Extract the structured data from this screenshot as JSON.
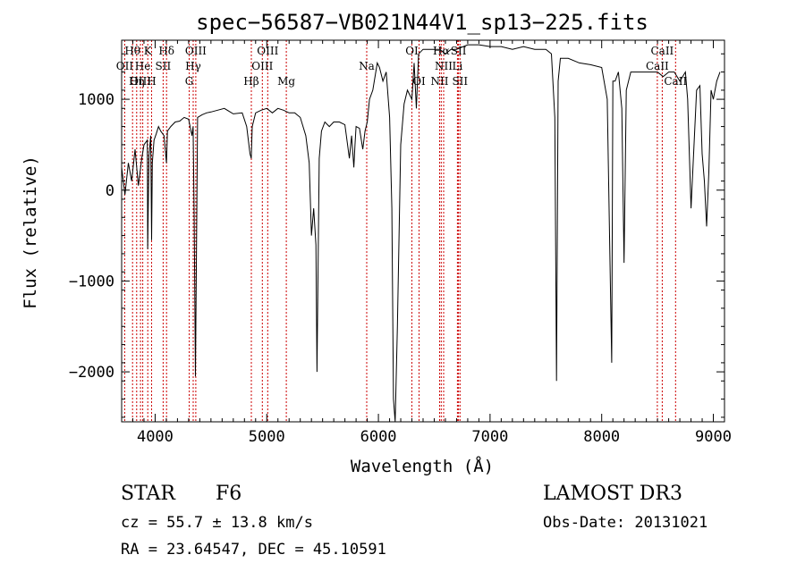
{
  "chart_data": {
    "type": "line",
    "title": "spec−56587−VB021N44V1_sp13−225.fits",
    "xlabel": "Wavelength (Å)",
    "ylabel": "Flux (relative)",
    "xlim": [
      3700,
      9100
    ],
    "ylim": [
      -2550,
      1650
    ],
    "x_ticks": [
      4000,
      5000,
      6000,
      7000,
      8000,
      9000
    ],
    "x_tick_labels": [
      "4000",
      "5000",
      "6000",
      "7000",
      "8000",
      "9000"
    ],
    "y_ticks": [
      1000,
      0,
      -1000,
      -2000
    ],
    "y_tick_labels": [
      "1000",
      "0",
      "−1000",
      "−2000"
    ],
    "series": [
      {
        "name": "flux",
        "x": [
          3700,
          3730,
          3760,
          3790,
          3820,
          3850,
          3880,
          3900,
          3930,
          3933,
          3945,
          3960,
          3968,
          3975,
          3990,
          4010,
          4030,
          4050,
          4080,
          4101,
          4110,
          4140,
          4180,
          4220,
          4260,
          4300,
          4330,
          4340,
          4350,
          4361,
          4380,
          4420,
          4460,
          4500,
          4560,
          4620,
          4700,
          4780,
          4820,
          4850,
          4861,
          4870,
          4900,
          4950,
          5000,
          5050,
          5100,
          5150,
          5200,
          5250,
          5300,
          5350,
          5380,
          5400,
          5420,
          5440,
          5450,
          5470,
          5490,
          5520,
          5560,
          5600,
          5650,
          5700,
          5740,
          5760,
          5780,
          5790,
          5800,
          5830,
          5860,
          5880,
          5900,
          5920,
          5950,
          5990,
          6010,
          6040,
          6070,
          6100,
          6120,
          6135,
          6150,
          6170,
          6200,
          6230,
          6260,
          6280,
          6300,
          6320,
          6340,
          6360,
          6400,
          6450,
          6500,
          6550,
          6600,
          6650,
          6700,
          6800,
          6900,
          7000,
          7100,
          7200,
          7300,
          7400,
          7500,
          7550,
          7580,
          7595,
          7610,
          7630,
          7660,
          7700,
          7800,
          7900,
          8000,
          8050,
          8090,
          8100,
          8120,
          8150,
          8180,
          8200,
          8220,
          8260,
          8300,
          8400,
          8500,
          8550,
          8600,
          8650,
          8700,
          8750,
          8770,
          8800,
          8850,
          8880,
          8900,
          8920,
          8940,
          8960,
          8980,
          9000,
          9030,
          9060
        ],
        "y": [
          250,
          -50,
          300,
          100,
          450,
          50,
          350,
          500,
          550,
          -650,
          380,
          600,
          -550,
          300,
          550,
          620,
          700,
          650,
          600,
          300,
          650,
          700,
          750,
          760,
          800,
          780,
          600,
          700,
          -300,
          -2050,
          800,
          830,
          850,
          860,
          880,
          900,
          840,
          850,
          700,
          400,
          350,
          700,
          850,
          880,
          900,
          850,
          900,
          880,
          850,
          850,
          800,
          600,
          300,
          -500,
          -200,
          -600,
          -2000,
          350,
          650,
          750,
          700,
          750,
          750,
          720,
          350,
          600,
          250,
          500,
          700,
          680,
          450,
          650,
          750,
          1000,
          1100,
          1400,
          1350,
          1200,
          1300,
          800,
          -200,
          -2300,
          -2550,
          -1500,
          500,
          950,
          1100,
          1050,
          1000,
          1400,
          900,
          1500,
          1550,
          1550,
          1550,
          1550,
          1500,
          1550,
          1550,
          1600,
          1600,
          1580,
          1580,
          1550,
          1580,
          1550,
          1550,
          1500,
          800,
          -2100,
          1200,
          1450,
          1450,
          1450,
          1400,
          1380,
          1350,
          1000,
          -1900,
          1200,
          1200,
          1300,
          900,
          -800,
          1100,
          1300,
          1300,
          1300,
          1300,
          1250,
          1300,
          1300,
          1200,
          1300,
          1000,
          -200,
          1100,
          1150,
          400,
          100,
          -400,
          200,
          1100,
          1000,
          1200,
          1300
        ]
      }
    ],
    "line_markers": [
      {
        "name": "Hθ",
        "x": 3798,
        "row": 1
      },
      {
        "name": "OII",
        "x": 3727,
        "row": 2
      },
      {
        "name": "OIII",
        "x": 3869,
        "row": 3
      },
      {
        "name": "He",
        "x": 3889,
        "row": 2
      },
      {
        "name": "Hη",
        "x": 3835,
        "row": 3
      },
      {
        "name": "K",
        "x": 3934,
        "row": 1
      },
      {
        "name": "H",
        "x": 3968,
        "row": 3
      },
      {
        "name": "Hδ",
        "x": 4102,
        "row": 1
      },
      {
        "name": "SII",
        "x": 4072,
        "row": 2
      },
      {
        "name": "OIII",
        "x": 4364,
        "row": 1
      },
      {
        "name": "Hγ",
        "x": 4341,
        "row": 2
      },
      {
        "name": "G",
        "x": 4305,
        "row": 3
      },
      {
        "name": "Hβ",
        "x": 4862,
        "row": 3
      },
      {
        "name": "OIII",
        "x": 5008,
        "row": 1
      },
      {
        "name": "OIII",
        "x": 4960,
        "row": 2
      },
      {
        "name": "Mg",
        "x": 5175,
        "row": 3
      },
      {
        "name": "Na",
        "x": 5895,
        "row": 2
      },
      {
        "name": "OI",
        "x": 6300,
        "row": 1
      },
      {
        "name": "OI",
        "x": 6364,
        "row": 3
      },
      {
        "name": "Hα",
        "x": 6563,
        "row": 1
      },
      {
        "name": "NII",
        "x": 6584,
        "row": 2
      },
      {
        "name": "NII",
        "x": 6548,
        "row": 3
      },
      {
        "name": "SII",
        "x": 6717,
        "row": 1
      },
      {
        "name": "Li",
        "x": 6708,
        "row": 2
      },
      {
        "name": "SII",
        "x": 6731,
        "row": 3
      },
      {
        "name": "CaII",
        "x": 8542,
        "row": 1
      },
      {
        "name": "CaII",
        "x": 8498,
        "row": 2
      },
      {
        "name": "CaII",
        "x": 8662,
        "row": 3
      }
    ]
  },
  "info": {
    "object_class": "STAR",
    "subclass": "F6",
    "survey": "LAMOST DR3",
    "redshift": "cz = 55.7 ± 13.8 km/s",
    "obs_date": "Obs-Date: 20131021",
    "coords": "RA =  23.64547, DEC =  45.10591"
  }
}
